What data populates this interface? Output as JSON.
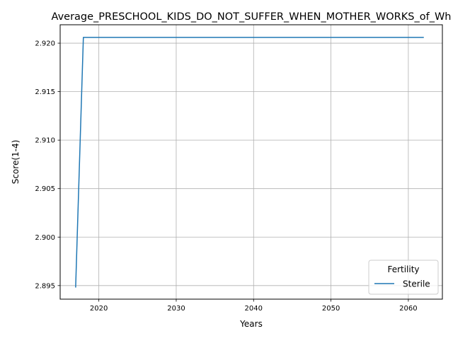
{
  "chart_data": {
    "type": "line",
    "title": "Average_PRESCHOOL_KIDS_DO_NOT_SUFFER_WHEN_MOTHER_WORKS_of_Wh",
    "xlabel": "Years",
    "ylabel": "Score(1-4)",
    "xlim": [
      2015,
      2064.4
    ],
    "ylim": [
      2.8936,
      2.9219
    ],
    "xticks": [
      2020,
      2030,
      2040,
      2050,
      2060
    ],
    "xtick_labels": [
      "2020",
      "2030",
      "2040",
      "2050",
      "2060"
    ],
    "yticks": [
      2.895,
      2.9,
      2.905,
      2.91,
      2.915,
      2.92
    ],
    "ytick_labels": [
      "2.895",
      "2.900",
      "2.905",
      "2.910",
      "2.915",
      "2.920"
    ],
    "grid": true,
    "legend": {
      "title": "Fertility",
      "placement": "lower-right"
    },
    "series": [
      {
        "name": "Sterile",
        "color": "#1f77b4",
        "x": [
          2017,
          2018,
          2019,
          2020,
          2021,
          2022,
          2023,
          2024,
          2025,
          2026,
          2027,
          2028,
          2029,
          2030,
          2031,
          2032,
          2033,
          2034,
          2035,
          2036,
          2037,
          2038,
          2039,
          2040,
          2041,
          2042,
          2043,
          2044,
          2045,
          2046,
          2047,
          2048,
          2049,
          2050,
          2051,
          2052,
          2053,
          2054,
          2055,
          2056,
          2057,
          2058,
          2059,
          2060,
          2061,
          2062
        ],
        "y": [
          2.8948,
          2.9206,
          2.9206,
          2.9206,
          2.9206,
          2.9206,
          2.9206,
          2.9206,
          2.9206,
          2.9206,
          2.9206,
          2.9206,
          2.9206,
          2.9206,
          2.9206,
          2.9206,
          2.9206,
          2.9206,
          2.9206,
          2.9206,
          2.9206,
          2.9206,
          2.9206,
          2.9206,
          2.9206,
          2.9206,
          2.9206,
          2.9206,
          2.9206,
          2.9206,
          2.9206,
          2.9206,
          2.9206,
          2.9206,
          2.9206,
          2.9206,
          2.9206,
          2.9206,
          2.9206,
          2.9206,
          2.9206,
          2.9206,
          2.9206,
          2.9206,
          2.9206,
          2.9206
        ]
      }
    ]
  }
}
